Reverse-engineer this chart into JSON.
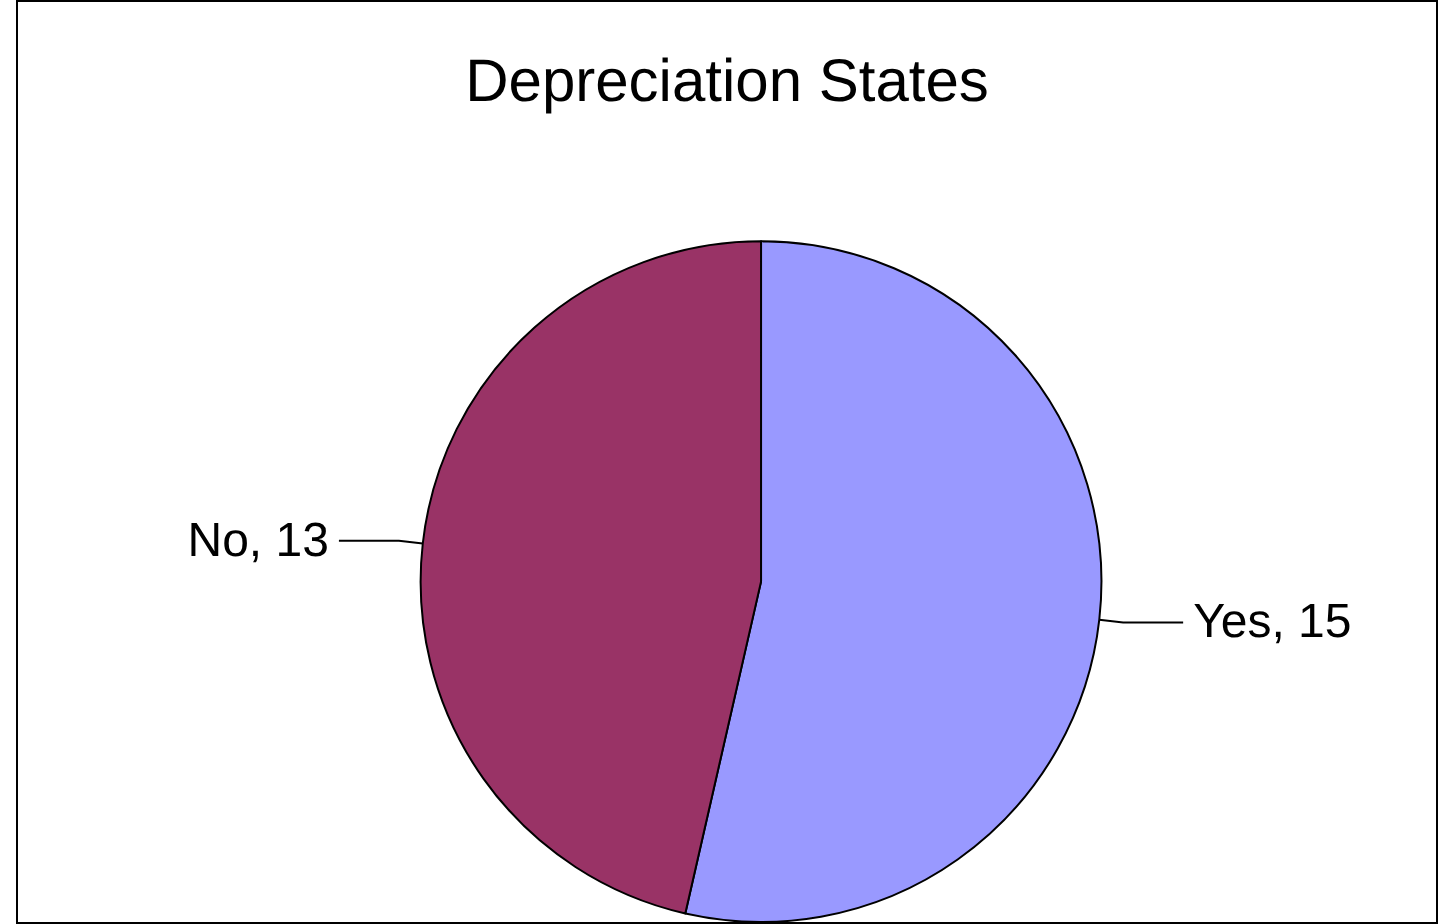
{
  "chart_data": {
    "type": "pie",
    "title": "Depreciation States",
    "categories": [
      "Yes",
      "No"
    ],
    "values": [
      15,
      13
    ],
    "value_labels": [
      ", 15",
      ", 13"
    ],
    "colors": [
      "#9999ff",
      "#993366"
    ]
  }
}
